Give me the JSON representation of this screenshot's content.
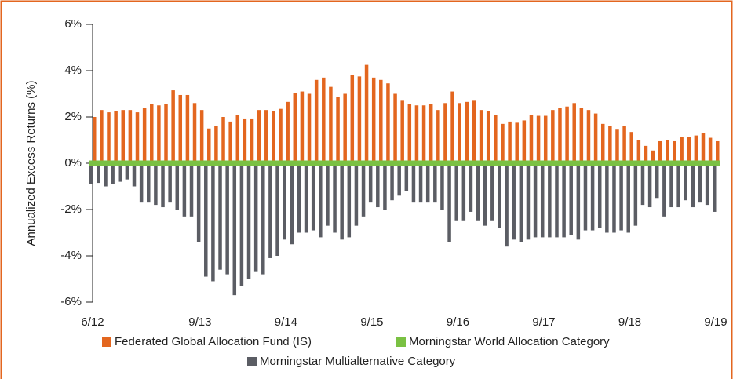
{
  "chart_data": {
    "type": "bar",
    "y_label": "Annualized Excess Returns (%)",
    "categories": [
      "6/12",
      null,
      null,
      null,
      null,
      null,
      null,
      null,
      null,
      null,
      null,
      null,
      null,
      null,
      null,
      "9/13",
      null,
      null,
      null,
      null,
      null,
      null,
      null,
      null,
      null,
      null,
      null,
      "9/14",
      null,
      null,
      null,
      null,
      null,
      null,
      null,
      null,
      null,
      null,
      null,
      "9/15",
      null,
      null,
      null,
      null,
      null,
      null,
      null,
      null,
      null,
      null,
      null,
      "9/16",
      null,
      null,
      null,
      null,
      null,
      null,
      null,
      null,
      null,
      null,
      null,
      "9/17",
      null,
      null,
      null,
      null,
      null,
      null,
      null,
      null,
      null,
      null,
      null,
      "9/18",
      null,
      null,
      null,
      null,
      null,
      null,
      null,
      null,
      null,
      null,
      null,
      "9/19"
    ],
    "series": [
      {
        "name": "Federated Global Allocation Fund (IS)",
        "color": "#e3661f",
        "values": [
          2.0,
          2.3,
          2.2,
          2.25,
          2.3,
          2.3,
          2.2,
          2.4,
          2.55,
          2.5,
          2.55,
          3.15,
          2.95,
          2.95,
          2.6,
          2.3,
          1.5,
          1.6,
          2.0,
          1.8,
          2.1,
          1.9,
          1.9,
          2.3,
          2.3,
          2.25,
          2.35,
          2.65,
          3.05,
          3.1,
          3.0,
          3.6,
          3.7,
          3.3,
          2.85,
          3.0,
          3.8,
          3.75,
          4.25,
          3.7,
          3.6,
          3.45,
          3.0,
          2.7,
          2.55,
          2.5,
          2.5,
          2.55,
          2.3,
          2.6,
          3.1,
          2.6,
          2.65,
          2.7,
          2.3,
          2.25,
          2.1,
          1.7,
          1.8,
          1.75,
          1.85,
          2.1,
          2.05,
          2.05,
          2.3,
          2.4,
          2.45,
          2.6,
          2.4,
          2.3,
          2.15,
          1.7,
          1.6,
          1.45,
          1.6,
          1.35,
          1.0,
          0.75,
          0.55,
          0.95,
          1.0,
          0.95,
          1.15,
          1.15,
          1.2,
          1.3,
          1.1,
          0.95
        ]
      },
      {
        "name": "Morningstar World Allocation Category",
        "color": "#7ac143",
        "values": [
          0,
          0,
          0,
          0,
          0,
          0,
          0,
          0,
          0,
          0,
          0,
          0,
          0,
          0,
          0,
          0,
          0,
          0,
          0,
          0,
          0,
          0,
          0,
          0,
          0,
          0,
          0,
          0,
          0,
          0,
          0,
          0,
          0,
          0,
          0,
          0,
          0,
          0,
          0,
          0,
          0,
          0,
          0,
          0,
          0,
          0,
          0,
          0,
          0,
          0,
          0,
          0,
          0,
          0,
          0,
          0,
          0,
          0,
          0,
          0,
          0,
          0,
          0,
          0,
          0,
          0,
          0,
          0,
          0,
          0,
          0,
          0,
          0,
          0,
          0,
          0,
          0,
          0,
          0,
          0,
          0,
          0,
          0,
          0,
          0,
          0,
          0,
          0
        ]
      },
      {
        "name": "Morningstar Multialternative Category",
        "color": "#5b5d64",
        "values": [
          -0.9,
          -0.85,
          -1.0,
          -0.9,
          -0.8,
          -0.7,
          -1.0,
          -1.7,
          -1.7,
          -1.8,
          -1.9,
          -1.7,
          -2.0,
          -2.3,
          -2.3,
          -3.4,
          -4.9,
          -5.1,
          -4.6,
          -4.8,
          -5.7,
          -5.3,
          -5.0,
          -4.7,
          -4.8,
          -4.1,
          -4.0,
          -3.3,
          -3.5,
          -3.0,
          -3.0,
          -2.9,
          -3.2,
          -2.7,
          -3.0,
          -3.3,
          -3.2,
          -2.7,
          -2.3,
          -1.7,
          -1.9,
          -2.0,
          -1.6,
          -1.4,
          -1.2,
          -1.7,
          -1.7,
          -1.7,
          -1.7,
          -2.0,
          -3.4,
          -2.5,
          -2.5,
          -2.1,
          -2.5,
          -2.7,
          -2.5,
          -2.8,
          -3.6,
          -3.3,
          -3.4,
          -3.3,
          -3.2,
          -3.2,
          -3.2,
          -3.2,
          -3.2,
          -3.1,
          -3.3,
          -2.9,
          -2.9,
          -2.8,
          -3.0,
          -3.0,
          -2.9,
          -3.0,
          -2.7,
          -1.8,
          -1.9,
          -1.5,
          -2.3,
          -1.9,
          -1.9,
          -1.6,
          -1.9,
          -1.7,
          -1.8,
          -2.1
        ]
      }
    ],
    "ylim": [
      -6,
      6
    ],
    "yticks": [
      {
        "value": -6,
        "label": "-6%"
      },
      {
        "value": -4,
        "label": "-4%"
      },
      {
        "value": -2,
        "label": "-2%"
      },
      {
        "value": 0,
        "label": "0%"
      },
      {
        "value": 2,
        "label": "2%"
      },
      {
        "value": 4,
        "label": "4%"
      },
      {
        "value": 6,
        "label": "6%"
      }
    ],
    "grid": false
  }
}
